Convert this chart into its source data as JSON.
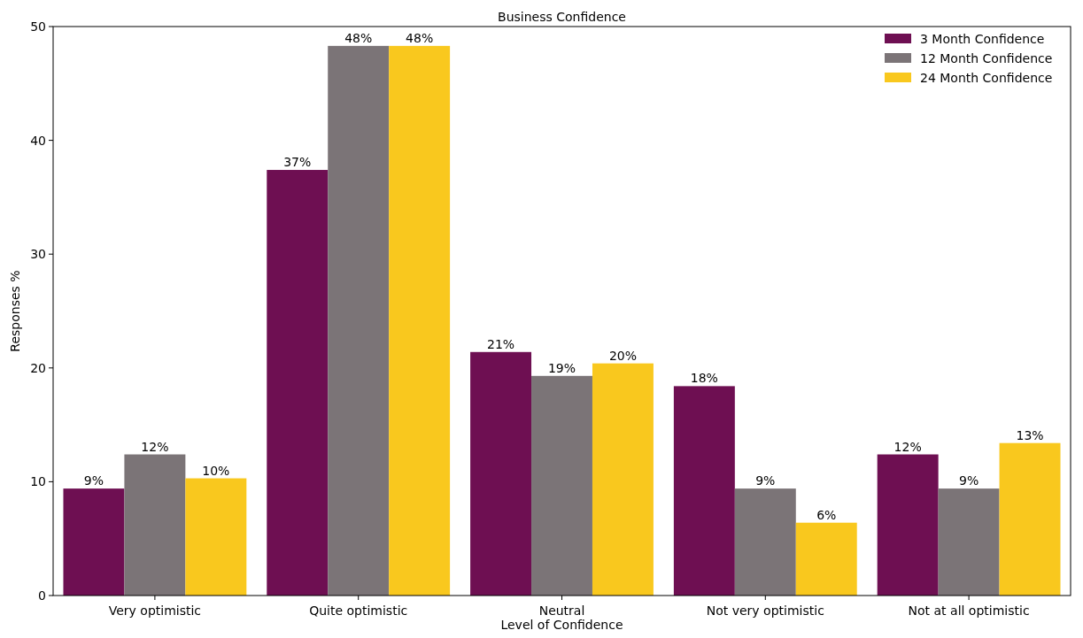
{
  "chart_data": {
    "type": "bar",
    "title": "Business Confidence",
    "xlabel": "Level of Confidence",
    "ylabel": "Responses %",
    "categories": [
      "Very optimistic",
      "Quite optimistic",
      "Neutral",
      "Not very optimistic",
      "Not at all optimistic"
    ],
    "series": [
      {
        "name": "3 Month Confidence",
        "color": "#6e0f52",
        "values": [
          9.4,
          37.4,
          21.4,
          18.4,
          12.4
        ],
        "value_labels": [
          "9%",
          "37%",
          "21%",
          "18%",
          "12%"
        ]
      },
      {
        "name": "12 Month Confidence",
        "color": "#7b7477",
        "values": [
          12.4,
          48.3,
          19.3,
          9.4,
          9.4
        ],
        "value_labels": [
          "12%",
          "48%",
          "19%",
          "9%",
          "9%"
        ]
      },
      {
        "name": "24 Month Confidence",
        "color": "#f9c81e",
        "values": [
          10.3,
          48.3,
          20.4,
          6.4,
          13.4
        ],
        "value_labels": [
          "10%",
          "48%",
          "20%",
          "6%",
          "13%"
        ]
      }
    ],
    "ylim": [
      0,
      50
    ],
    "yticks": [
      0,
      10,
      20,
      30,
      40,
      50
    ],
    "legend": "top right"
  }
}
